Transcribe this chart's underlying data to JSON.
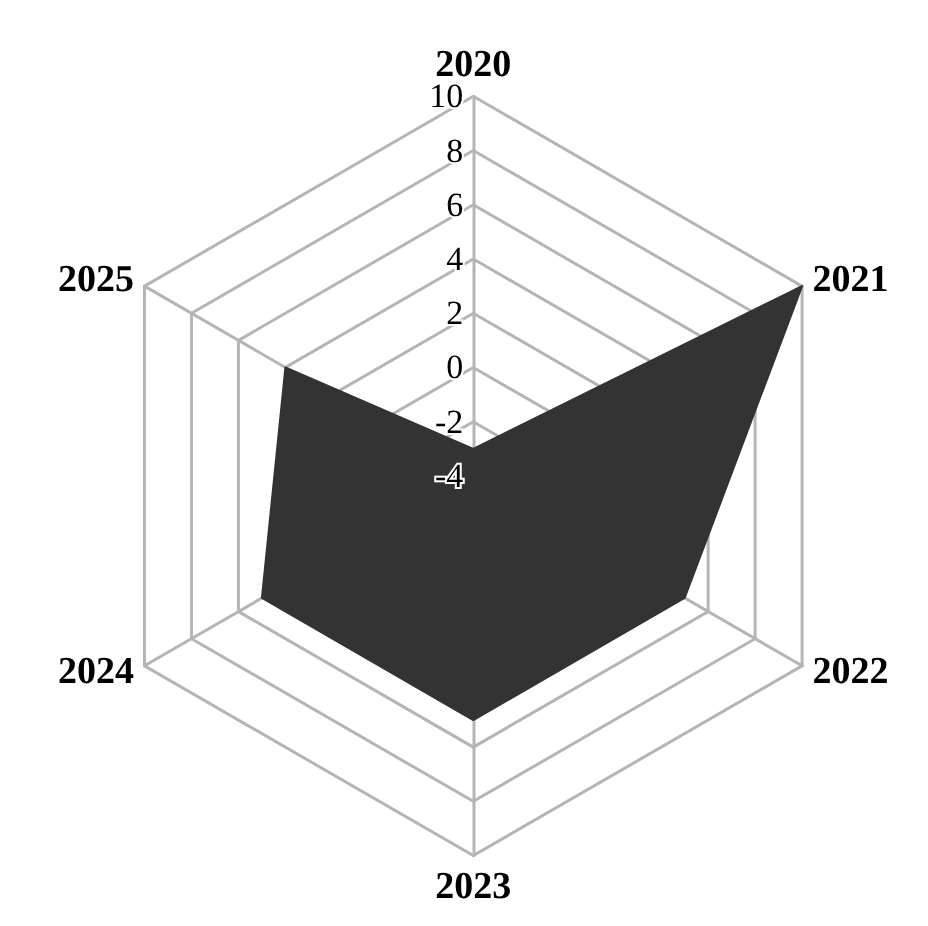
{
  "chart_data": {
    "type": "radar",
    "categories": [
      "2020",
      "2021",
      "2022",
      "2023",
      "2024",
      "2025"
    ],
    "series": [
      {
        "color": "#333333",
        "values": [
          -3,
          10,
          5,
          5,
          5,
          4
        ]
      }
    ],
    "ylim": [
      -4,
      10
    ],
    "yticks": [
      -4,
      -2,
      0,
      2,
      4,
      6,
      8,
      10
    ]
  }
}
